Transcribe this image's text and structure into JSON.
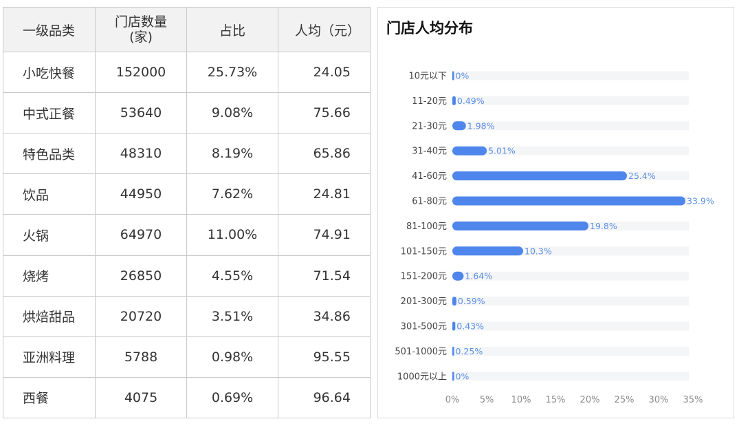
{
  "table": {
    "headers": [
      "一级品类",
      "门店数量",
      "(家)",
      "占比",
      "人均（元）"
    ],
    "rows": [
      [
        "小吃快餐",
        "152000",
        "25.73%",
        "24.05"
      ],
      [
        "中式正餐",
        "53640",
        "9.08%",
        "75.66"
      ],
      [
        "特色品类",
        "48310",
        "8.19%",
        "65.86"
      ],
      [
        "饮品",
        "44950",
        "7.62%",
        "24.81"
      ],
      [
        "火锅",
        "64970",
        "11.00%",
        "74.91"
      ],
      [
        "烧烤",
        "26850",
        "4.55%",
        "71.54"
      ],
      [
        "烘焙甜品",
        "20720",
        "3.51%",
        "34.86"
      ],
      [
        "亚洲料理",
        "5788",
        "0.98%",
        "95.55"
      ],
      [
        "西餐",
        "4075",
        "0.69%",
        "96.64"
      ]
    ]
  },
  "chart_data": {
    "type": "bar",
    "orientation": "horizontal",
    "title": "门店人均分布",
    "categories": [
      "10元以下",
      "11-20元",
      "21-30元",
      "31-40元",
      "41-60元",
      "61-80元",
      "81-100元",
      "101-150元",
      "151-200元",
      "201-300元",
      "301-500元",
      "501-1000元",
      "1000元以上"
    ],
    "values": [
      0,
      0.49,
      1.98,
      5.01,
      25.4,
      33.9,
      19.8,
      10.3,
      1.64,
      0.59,
      0.43,
      0.25,
      0
    ],
    "value_labels": [
      "0%",
      "0.49%",
      "1.98%",
      "5.01%",
      "25.4%",
      "33.9%",
      "19.8%",
      "10.3%",
      "1.64%",
      "0.59%",
      "0.43%",
      "0.25%",
      "0%"
    ],
    "xlim": [
      0,
      35
    ],
    "x_ticks": [
      "0%",
      "5%",
      "10%",
      "15%",
      "20%",
      "25%",
      "30%",
      "35%"
    ],
    "x_tick_values": [
      0,
      5,
      10,
      15,
      20,
      25,
      30,
      35
    ],
    "grid": false,
    "colors": {
      "bar": "#4e86ec",
      "track": "#f4f5f7",
      "value_label": "#5b8fe6"
    }
  }
}
